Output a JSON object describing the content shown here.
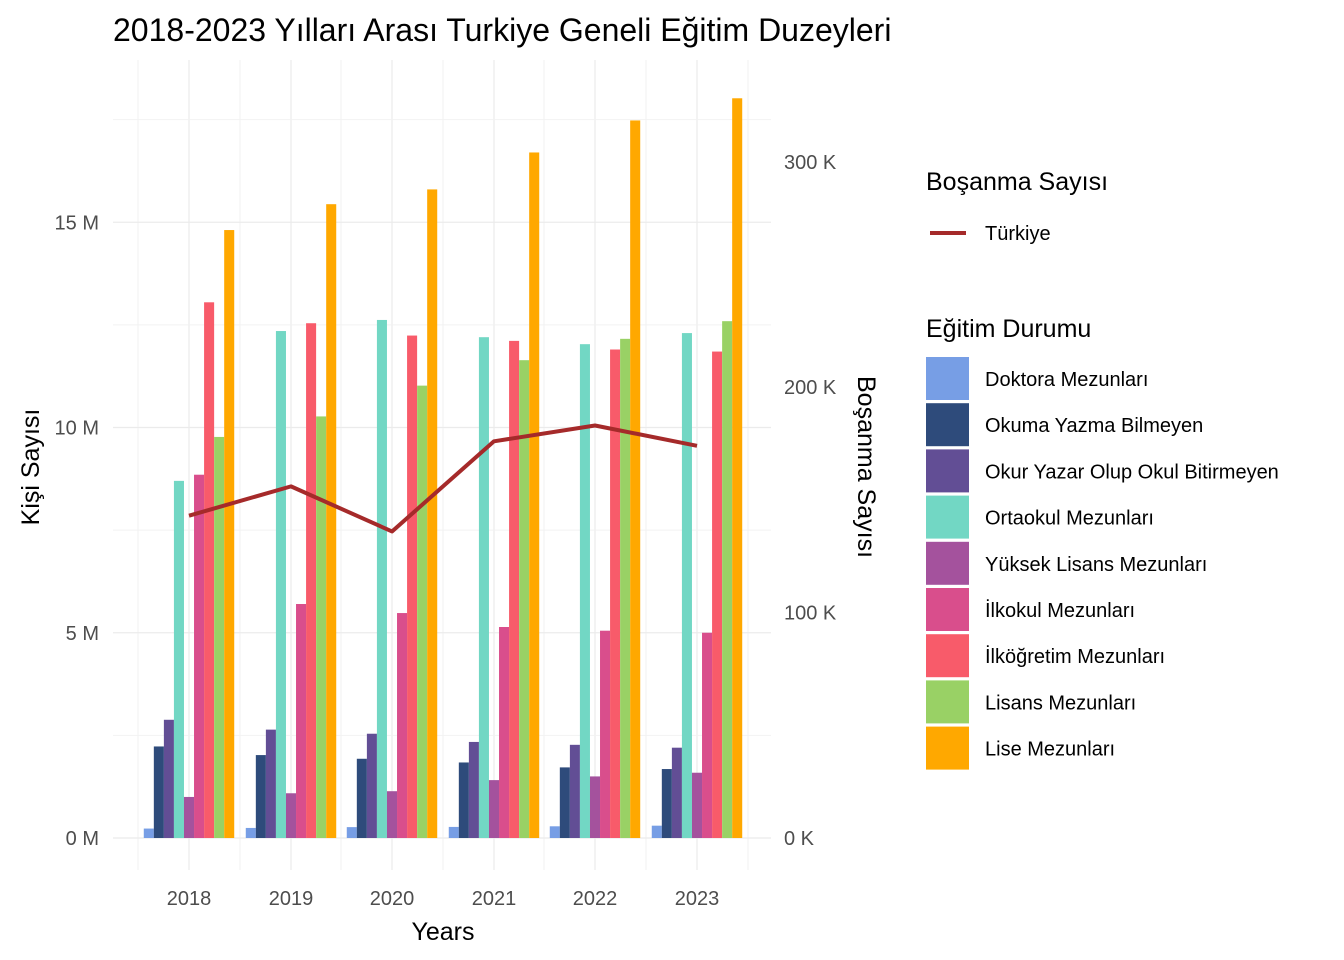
{
  "chart_data": {
    "type": "bar",
    "title": "2018-2023 Yılları Arası Turkiye Geneli Eğitim Duzeyleri",
    "xlabel": "Years",
    "ylabel": "Kişi Sayısı",
    "y2label": "Boşanma Sayısı",
    "categories": [
      "2018",
      "2019",
      "2020",
      "2021",
      "2022",
      "2023"
    ],
    "ylim": [
      0,
      18000000
    ],
    "y2lim": [
      0,
      328000
    ],
    "yticks": [
      "0 M",
      "5 M",
      "10 M",
      "15 M"
    ],
    "y2ticks": [
      "0 K",
      "100 K",
      "200 K",
      "300 K"
    ],
    "grid": true,
    "legend_position": "right",
    "series": [
      {
        "name": "Doktora Mezunları",
        "color": "#779ee5",
        "values": [
          230000,
          245000,
          265000,
          270000,
          285000,
          300000
        ]
      },
      {
        "name": "Okuma Yazma Bilmeyen",
        "color": "#2e4b7b",
        "values": [
          2230000,
          2020000,
          1930000,
          1840000,
          1720000,
          1680000
        ]
      },
      {
        "name": "Okur Yazar Olup Okul Bitirmeyen",
        "color": "#624e95",
        "values": [
          2880000,
          2640000,
          2540000,
          2340000,
          2270000,
          2200000
        ]
      },
      {
        "name": "Ortaokul Mezunları",
        "color": "#72d7c4",
        "values": [
          8700000,
          12350000,
          12620000,
          12200000,
          12030000,
          12300000
        ]
      },
      {
        "name": "Yüksek Lisans Mezunları",
        "color": "#a4529d",
        "values": [
          1000000,
          1090000,
          1140000,
          1410000,
          1500000,
          1590000
        ]
      },
      {
        "name": "İlkokul Mezunları",
        "color": "#d94e8c",
        "values": [
          8850000,
          5700000,
          5480000,
          5140000,
          5050000,
          5000000
        ]
      },
      {
        "name": "İlköğretim Mezunları",
        "color": "#f85b6a",
        "values": [
          13050000,
          12540000,
          12240000,
          12110000,
          11900000,
          11850000
        ]
      },
      {
        "name": "Lisans Mezunları",
        "color": "#99d165",
        "values": [
          9770000,
          10270000,
          11020000,
          11640000,
          12160000,
          12590000
        ]
      },
      {
        "name": "Lise Mezunları",
        "color": "#ffa800",
        "values": [
          14810000,
          15440000,
          15800000,
          16700000,
          17480000,
          18020000
        ]
      }
    ],
    "line_series": [
      {
        "name": "Türkiye",
        "color": "#a52a2a",
        "values": [
          143000,
          156000,
          136000,
          176000,
          183000,
          174000
        ]
      }
    ],
    "legend": {
      "line_title": "Boşanma Sayısı",
      "bar_title": "Eğitim Durumu"
    }
  }
}
